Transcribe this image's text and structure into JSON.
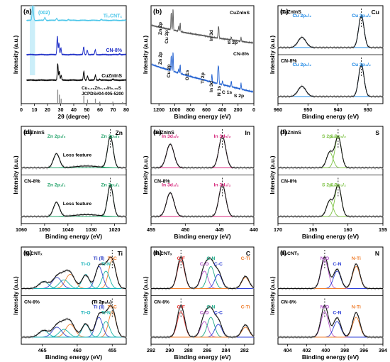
{
  "chart_data": [
    {
      "id": "a",
      "type": "line",
      "panel_label": "(a)",
      "xlabel": "2θ (degree)",
      "ylabel": "Intensity (a.u.)",
      "xlim": [
        0,
        80
      ],
      "xticks": [
        0,
        10,
        20,
        30,
        40,
        50,
        60,
        70,
        80
      ],
      "ylim": [
        0,
        10
      ],
      "annotations": [
        {
          "text": "(002)",
          "color": "#45c7e8"
        },
        {
          "text": "Cu₀.₂₉Zn₀.₄₂In₀.₂₉S",
          "color": "#000000"
        },
        {
          "text": "JCPDS#04-005-5200",
          "color": "#000000"
        }
      ],
      "series": [
        {
          "name": "Ti₃CNTₓ",
          "color": "#52c8ea",
          "baseline": 8.5,
          "peaks": [
            [
              8.8,
              1.5,
              0.5
            ],
            [
              18,
              0.3,
              0.5
            ],
            [
              27,
              0.2,
              0.5
            ],
            [
              36,
              0.1,
              0.5
            ],
            [
              61,
              0.1,
              0.5
            ]
          ]
        },
        {
          "name": "CN-8%",
          "color": "#1f2fc7",
          "baseline": 5.0,
          "peaks": [
            [
              27.5,
              1.9,
              0.35
            ],
            [
              28.7,
              1.2,
              0.35
            ],
            [
              30.2,
              0.7,
              0.35
            ],
            [
              47.6,
              0.8,
              0.4
            ],
            [
              50.3,
              0.45,
              0.4
            ],
            [
              56.4,
              0.5,
              0.4
            ],
            [
              75,
              0.1,
              0.5
            ]
          ]
        },
        {
          "name": "CuZnInS",
          "color": "#000000",
          "baseline": 2.4,
          "peaks": [
            [
              27.8,
              1.7,
              0.35
            ],
            [
              29.0,
              0.9,
              0.35
            ],
            [
              30.4,
              0.5,
              0.35
            ],
            [
              47.7,
              0.9,
              0.4
            ],
            [
              50.5,
              0.4,
              0.4
            ],
            [
              56.5,
              0.5,
              0.4
            ],
            [
              59.8,
              0.1,
              0.4
            ],
            [
              69.8,
              0.1,
              0.4
            ]
          ]
        }
      ],
      "reference_sticks": {
        "x": [
          27.8,
          29.0,
          30.4,
          47.7,
          50.5,
          56.5,
          59.8,
          69.8,
          77.2
        ],
        "heights": [
          1.4,
          0.9,
          0.5,
          0.8,
          0.4,
          0.5,
          0.2,
          0.2,
          0.15
        ],
        "color": "#888888"
      }
    },
    {
      "id": "b",
      "type": "line",
      "panel_label": "(b)",
      "reversed_x": true,
      "xlabel": "Binding energy (eV)",
      "ylabel": "Intensity (a.u.)",
      "xlim": [
        1300,
        0
      ],
      "xticks": [
        1200,
        1000,
        800,
        600,
        400,
        200,
        0
      ],
      "ylim": [
        0,
        10
      ],
      "series": [
        {
          "name": "CuZnInS",
          "color": "#555555",
          "start": 7.6,
          "end": 6.2,
          "peaks": [
            [
              1045,
              1.8,
              4
            ],
            [
              1022,
              2.2,
              4
            ],
            [
              952,
              0.5,
              4
            ],
            [
              932,
              0.9,
              4
            ],
            [
              451,
              0.7,
              4
            ],
            [
              444,
              1.0,
              4
            ],
            [
              285,
              0.3,
              4
            ],
            [
              162,
              0.4,
              4
            ]
          ]
        },
        {
          "name": "CN-8%",
          "color": "#1f5fd0",
          "start": 3.6,
          "end": 1.2,
          "peaks": [
            [
              1045,
              1.6,
              4
            ],
            [
              1022,
              2.0,
              4
            ],
            [
              952,
              0.4,
              4
            ],
            [
              932,
              0.9,
              4
            ],
            [
              530,
              0.8,
              4
            ],
            [
              451,
              1.0,
              4
            ],
            [
              444,
              1.4,
              4
            ],
            [
              455,
              0.8,
              4
            ],
            [
              397,
              0.4,
              4
            ],
            [
              285,
              0.6,
              4
            ],
            [
              162,
              0.6,
              4
            ]
          ]
        }
      ],
      "labels": [
        {
          "series": "CuZnInS",
          "text": "CuZnInS",
          "color": "#000000"
        },
        {
          "series": "CuZnInS",
          "text": "Zn 2p",
          "color": "#000000"
        },
        {
          "series": "CuZnInS",
          "text": "Cu 2p",
          "color": "#000000"
        },
        {
          "series": "CuZnInS",
          "text": "In 3d",
          "color": "#000000"
        },
        {
          "series": "CuZnInS",
          "text": "S 2p",
          "color": "#000000"
        },
        {
          "series": "CN-8%",
          "text": "CN-8%",
          "color": "#000000"
        },
        {
          "series": "CN-8%",
          "text": "Zn 2p",
          "color": "#000000"
        },
        {
          "series": "CN-8%",
          "text": "Cu 2p",
          "color": "#000000"
        },
        {
          "series": "CN-8%",
          "text": "O 1s",
          "color": "#000000"
        },
        {
          "series": "CN-8%",
          "text": "Ti 2p",
          "color": "#000000"
        },
        {
          "series": "CN-8%",
          "text": "In 3d",
          "color": "#000000"
        },
        {
          "series": "CN-8%",
          "text": "N 1s",
          "color": "#000000"
        },
        {
          "series": "CN-8%",
          "text": "C 1s",
          "color": "#000000"
        },
        {
          "series": "CN-8%",
          "text": "S 2p",
          "color": "#000000"
        }
      ]
    },
    {
      "id": "c",
      "type": "line",
      "panel_label": "(c)",
      "reversed_x": true,
      "element": "Cu",
      "xlabel": "Binding energy (eV)",
      "ylabel": "Intensity (a.u.)",
      "xlim": [
        960,
        925
      ],
      "xticks": [
        960,
        950,
        940,
        930
      ],
      "subplots": [
        {
          "name": "CuZnInS",
          "fit_color": "#1e88e5",
          "peaks": [
            [
              932.2,
              1.0,
              0.9
            ],
            [
              952.0,
              0.32,
              1.3
            ]
          ],
          "labels": [
            {
              "text": "Cu 2p₁/₂",
              "color": "#1e88e5"
            },
            {
              "text": "Cu 2p₃/₂",
              "color": "#1e88e5"
            }
          ]
        },
        {
          "name": "CN-8%",
          "fit_color": "#1e88e5",
          "peaks": [
            [
              932.2,
              1.0,
              0.9
            ],
            [
              952.0,
              0.32,
              1.3
            ]
          ],
          "labels": [
            {
              "text": "Cu 2p₁/₂",
              "color": "#1e88e5"
            },
            {
              "text": "Cu 2p₃/₂",
              "color": "#1e88e5"
            }
          ]
        }
      ]
    },
    {
      "id": "d",
      "type": "line",
      "panel_label": "(d)",
      "reversed_x": true,
      "element": "Zn",
      "xlabel": "Binding energy (eV)",
      "ylabel": "Intensity (a.u.)",
      "xlim": [
        1060,
        1015
      ],
      "xticks": [
        1060,
        1050,
        1040,
        1030,
        1020
      ],
      "subplots": [
        {
          "name": "CuZnInS",
          "fit_color": "#23a36a",
          "peaks": [
            [
              1021.8,
              1.0,
              1.2
            ],
            [
              1044.9,
              0.45,
              1.3
            ],
            [
              1032,
              0.06,
              5
            ]
          ],
          "labels": [
            {
              "text": "Zn 2p₁/₂",
              "color": "#23a36a"
            },
            {
              "text": "Zn 2p₃/₂",
              "color": "#23a36a"
            },
            {
              "text": "Loss feature",
              "color": "#000000"
            }
          ]
        },
        {
          "name": "CN-8%",
          "fit_color": "#23a36a",
          "peaks": [
            [
              1021.8,
              1.0,
              1.2
            ],
            [
              1044.9,
              0.45,
              1.3
            ],
            [
              1032,
              0.06,
              5
            ]
          ],
          "labels": [
            {
              "text": "Zn 2p₁/₂",
              "color": "#23a36a"
            },
            {
              "text": "Zn 2p₃/₂",
              "color": "#23a36a"
            },
            {
              "text": "Loss feature",
              "color": "#000000"
            }
          ]
        }
      ]
    },
    {
      "id": "e",
      "type": "line",
      "panel_label": "(e)",
      "reversed_x": true,
      "element": "In",
      "xlabel": "Binding energy (eV)",
      "ylabel": "Intensity (a.u.)",
      "xlim": [
        455,
        440
      ],
      "xticks": [
        455,
        450,
        445,
        440
      ],
      "subplots": [
        {
          "name": "CuZnInS",
          "fit_color": "#d6257a",
          "peaks": [
            [
              444.6,
              1.0,
              0.5
            ],
            [
              452.2,
              0.75,
              0.55
            ]
          ],
          "labels": [
            {
              "text": "In 3d₃/₂",
              "color": "#d6257a"
            },
            {
              "text": "In 3d₅/₂",
              "color": "#d6257a"
            }
          ]
        },
        {
          "name": "CN-8%",
          "fit_color": "#d6257a",
          "peaks": [
            [
              444.6,
              1.0,
              0.5
            ],
            [
              452.2,
              0.75,
              0.55
            ]
          ],
          "labels": [
            {
              "text": "In 3d₃/₂",
              "color": "#d6257a"
            },
            {
              "text": "In 3d₅/₂",
              "color": "#d6257a"
            }
          ]
        }
      ]
    },
    {
      "id": "f",
      "type": "line",
      "panel_label": "(f)",
      "reversed_x": true,
      "element": "S",
      "xlabel": "Binding energy (eV)",
      "ylabel": "Intensity (a.u.)",
      "xlim": [
        170,
        155
      ],
      "xticks": [
        170,
        165,
        160,
        155
      ],
      "subplots": [
        {
          "name": "CuZnInS",
          "fit_color": "#7cc243",
          "peaks": [
            [
              161.4,
              1.0,
              0.45
            ],
            [
              162.6,
              0.5,
              0.45
            ]
          ],
          "labels": [
            {
              "text": "S 2p₁/₂",
              "color": "#7cc243"
            },
            {
              "text": "S 2p₃/₂",
              "color": "#7cc243"
            }
          ]
        },
        {
          "name": "CN-8%",
          "fit_color": "#7cc243",
          "peaks": [
            [
              161.4,
              1.0,
              0.45
            ],
            [
              162.6,
              0.5,
              0.45
            ]
          ],
          "labels": [
            {
              "text": "S 2p₁/₂",
              "color": "#7cc243"
            },
            {
              "text": "S 2p₃/₂",
              "color": "#7cc243"
            }
          ]
        }
      ]
    },
    {
      "id": "g",
      "type": "line",
      "panel_label": "(g)",
      "reversed_x": true,
      "element": "Ti",
      "xlabel": "Binding energy (eV)",
      "ylabel": "Intensity (a.u.)",
      "xlim": [
        468,
        453
      ],
      "xticks": [
        465,
        460,
        455
      ],
      "components": [
        {
          "name": "Ti-C",
          "color": "#ef7f2f",
          "x": 455.0
        },
        {
          "name": "Ti-N",
          "color": "#1bb5a5",
          "x": 455.9
        },
        {
          "name": "Ti (Ⅱ)",
          "color": "#3646c8",
          "x": 456.9
        },
        {
          "name": "Ti-O",
          "color": "#17b0b8",
          "x": 458.8
        }
      ],
      "subplots": [
        {
          "name": "Ti₃CNTₓ",
          "labels": [
            {
              "text": "Ti₃CNTₓ",
              "color": "#000000"
            },
            {
              "text": "Ti-O",
              "color": "#17b0b8"
            },
            {
              "text": "Ti (Ⅱ)",
              "color": "#3646c8"
            },
            {
              "text": "Ti-N",
              "color": "#1bb5a5"
            },
            {
              "text": "Ti-C",
              "color": "#ef7f2f"
            }
          ]
        },
        {
          "name": "CN-8%",
          "labels": [
            {
              "text": "CN-8%",
              "color": "#000000"
            },
            {
              "text": "(Ti 2p₁/₂)",
              "color": "#000000"
            },
            {
              "text": "(Ti 2p₃/₂)",
              "color": "#000000"
            },
            {
              "text": "Ti-O",
              "color": "#17b0b8"
            },
            {
              "text": "Ti (Ⅱ)",
              "color": "#3646c8"
            },
            {
              "text": "Ti-C",
              "color": "#ef7f2f"
            },
            {
              "text": "Ti-N",
              "color": "#1bb5a5"
            }
          ]
        }
      ]
    },
    {
      "id": "h",
      "type": "line",
      "panel_label": "(h)",
      "reversed_x": true,
      "element": "C",
      "xlabel": "Binding energy (eV)",
      "ylabel": "Intensity (a.u.)",
      "xlim": [
        292,
        281
      ],
      "xticks": [
        292,
        290,
        288,
        286,
        284,
        282
      ],
      "components": [
        {
          "name": "C-F",
          "color": "#e53935",
          "x": 288.8
        },
        {
          "name": "C-O",
          "color": "#b04fc8",
          "x": 286.3
        },
        {
          "name": "C-N",
          "color": "#1faa88",
          "x": 285.6
        },
        {
          "name": "C-C",
          "color": "#2d3fd6",
          "x": 284.8
        },
        {
          "name": "C-Ti",
          "color": "#ef7f2f",
          "x": 281.9
        }
      ],
      "subplots": [
        {
          "name": "Ti₃CNTₓ",
          "labels": [
            {
              "text": "Ti₃CNTₓ",
              "color": "#000000"
            },
            {
              "text": "C-F",
              "color": "#e53935"
            },
            {
              "text": "C-O",
              "color": "#b04fc8"
            },
            {
              "text": "C-N",
              "color": "#1faa88"
            },
            {
              "text": "C-C",
              "color": "#2d3fd6"
            },
            {
              "text": "C-Ti",
              "color": "#ef7f2f"
            }
          ]
        },
        {
          "name": "CN-8%",
          "labels": [
            {
              "text": "CN-8%",
              "color": "#000000"
            },
            {
              "text": "C-F",
              "color": "#e53935"
            },
            {
              "text": "C-O",
              "color": "#b04fc8"
            },
            {
              "text": "C-N",
              "color": "#1faa88"
            },
            {
              "text": "C-C",
              "color": "#2d3fd6"
            },
            {
              "text": "C-Ti",
              "color": "#ef7f2f"
            }
          ]
        }
      ]
    },
    {
      "id": "i",
      "type": "line",
      "panel_label": "(i)",
      "reversed_x": true,
      "element": "N",
      "xlabel": "Binding energy (eV)",
      "ylabel": "Intensity (a.u.)",
      "xlim": [
        405,
        394
      ],
      "xticks": [
        404,
        402,
        400,
        398,
        396,
        394
      ],
      "components": [
        {
          "name": "N-O",
          "color": "#b04fc8",
          "x": 400.1
        },
        {
          "name": "C-N",
          "color": "#2d3fd6",
          "x": 398.8
        },
        {
          "name": "N-Ti",
          "color": "#ef7f2f",
          "x": 396.8
        }
      ],
      "subplots": [
        {
          "name": "Ti₃CNTₓ",
          "labels": [
            {
              "text": "Ti₃CNTₓ",
              "color": "#000000"
            },
            {
              "text": "N-O",
              "color": "#b04fc8"
            },
            {
              "text": "C-N",
              "color": "#2d3fd6"
            },
            {
              "text": "N-Ti",
              "color": "#ef7f2f"
            }
          ]
        },
        {
          "name": "CN-8%",
          "labels": [
            {
              "text": "CN-8%",
              "color": "#000000"
            },
            {
              "text": "N-O",
              "color": "#b04fc8"
            },
            {
              "text": "C-N",
              "color": "#2d3fd6"
            },
            {
              "text": "N-Ti",
              "color": "#ef7f2f"
            }
          ]
        }
      ]
    }
  ]
}
